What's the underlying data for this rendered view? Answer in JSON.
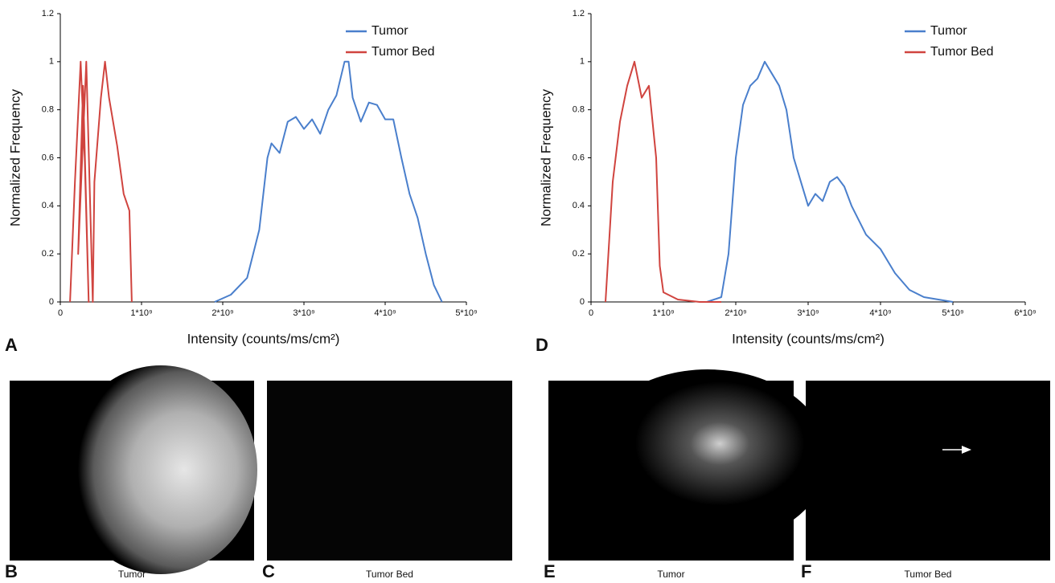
{
  "chart_data": [
    {
      "type": "line",
      "panel_label": "A",
      "xlabel": "Intensity (counts/ms/cm²)",
      "ylabel": "Normalized Frequency",
      "xlim": [
        0,
        5000000000
      ],
      "ylim": [
        0,
        1.2
      ],
      "legend": "upper right",
      "grid": false,
      "yticks": [
        0,
        0.2,
        0.4,
        0.6,
        0.8,
        1,
        1.2
      ],
      "xticks": [
        0,
        {
          "value": 1000000000,
          "label": "1*10⁹"
        },
        {
          "value": 2000000000,
          "label": "2*10⁹"
        },
        {
          "value": 3000000000,
          "label": "3*10⁹"
        },
        {
          "value": 4000000000,
          "label": "4*10⁹"
        },
        {
          "value": 5000000000,
          "label": "5*10⁹"
        }
      ],
      "series": [
        {
          "name": "Tumor",
          "color": "#4a7fcc",
          "x": [
            1900000000,
            2100000000,
            2300000000,
            2450000000,
            2550000000,
            2600000000,
            2700000000,
            2800000000,
            2900000000,
            3000000000,
            3100000000,
            3200000000,
            3300000000,
            3400000000,
            3500000000,
            3550000000,
            3600000000,
            3700000000,
            3800000000,
            3900000000,
            4000000000,
            4100000000,
            4200000000,
            4300000000,
            4400000000,
            4500000000,
            4600000000,
            4700000000
          ],
          "values": [
            0,
            0.03,
            0.1,
            0.3,
            0.6,
            0.66,
            0.62,
            0.75,
            0.77,
            0.72,
            0.76,
            0.7,
            0.8,
            0.86,
            1.0,
            1.0,
            0.85,
            0.75,
            0.83,
            0.82,
            0.76,
            0.76,
            0.6,
            0.45,
            0.35,
            0.2,
            0.07,
            0
          ]
        },
        {
          "name": "Tumor Bed",
          "color": "#d0443f",
          "x": [
            120000000,
            180000000,
            250000000,
            300000000,
            350000000,
            280000000,
            220000000,
            320000000,
            400000000,
            420000000,
            500000000,
            550000000,
            600000000,
            700000000,
            780000000,
            850000000,
            880000000
          ],
          "values": [
            0,
            0.5,
            1.0,
            0.6,
            0,
            0.9,
            0.2,
            1.0,
            0,
            0.5,
            0.85,
            1.0,
            0.85,
            0.65,
            0.45,
            0.38,
            0
          ]
        }
      ]
    },
    {
      "type": "line",
      "panel_label": "D",
      "xlabel": "Intensity (counts/ms/cm²)",
      "ylabel": "Normalized Frequency",
      "xlim": [
        0,
        6000000000
      ],
      "ylim": [
        0,
        1.2
      ],
      "legend": "upper right",
      "grid": false,
      "yticks": [
        0,
        0.2,
        0.4,
        0.6,
        0.8,
        1,
        1.2
      ],
      "xticks": [
        0,
        {
          "value": 1000000000,
          "label": "1*10⁹"
        },
        {
          "value": 2000000000,
          "label": "2*10⁹"
        },
        {
          "value": 3000000000,
          "label": "3*10⁹"
        },
        {
          "value": 4000000000,
          "label": "4*10⁹"
        },
        {
          "value": 5000000000,
          "label": "5*10⁹"
        },
        {
          "value": 6000000000,
          "label": "6*10⁹"
        }
      ],
      "series": [
        {
          "name": "Tumor",
          "color": "#4a7fcc",
          "x": [
            1600000000,
            1800000000,
            1900000000,
            2000000000,
            2100000000,
            2200000000,
            2300000000,
            2400000000,
            2500000000,
            2600000000,
            2700000000,
            2800000000,
            2900000000,
            3000000000,
            3100000000,
            3200000000,
            3300000000,
            3400000000,
            3500000000,
            3600000000,
            3800000000,
            4000000000,
            4200000000,
            4400000000,
            4600000000,
            5000000000
          ],
          "values": [
            0,
            0.02,
            0.2,
            0.6,
            0.82,
            0.9,
            0.93,
            1.0,
            0.95,
            0.9,
            0.8,
            0.6,
            0.5,
            0.4,
            0.45,
            0.42,
            0.5,
            0.52,
            0.48,
            0.4,
            0.28,
            0.22,
            0.12,
            0.05,
            0.02,
            0
          ]
        },
        {
          "name": "Tumor Bed",
          "color": "#d0443f",
          "x": [
            200000000,
            300000000,
            400000000,
            500000000,
            600000000,
            700000000,
            800000000,
            900000000,
            950000000,
            1000000000,
            1200000000,
            1500000000,
            1800000000
          ],
          "values": [
            0,
            0.5,
            0.75,
            0.9,
            1.0,
            0.85,
            0.9,
            0.6,
            0.15,
            0.04,
            0.01,
            0,
            0
          ]
        }
      ]
    }
  ],
  "panels": [
    {
      "letter": "B",
      "caption": "Tumor"
    },
    {
      "letter": "C",
      "caption": "Tumor Bed"
    },
    {
      "letter": "E",
      "caption": "Tumor"
    },
    {
      "letter": "F",
      "caption": "Tumor Bed"
    }
  ]
}
